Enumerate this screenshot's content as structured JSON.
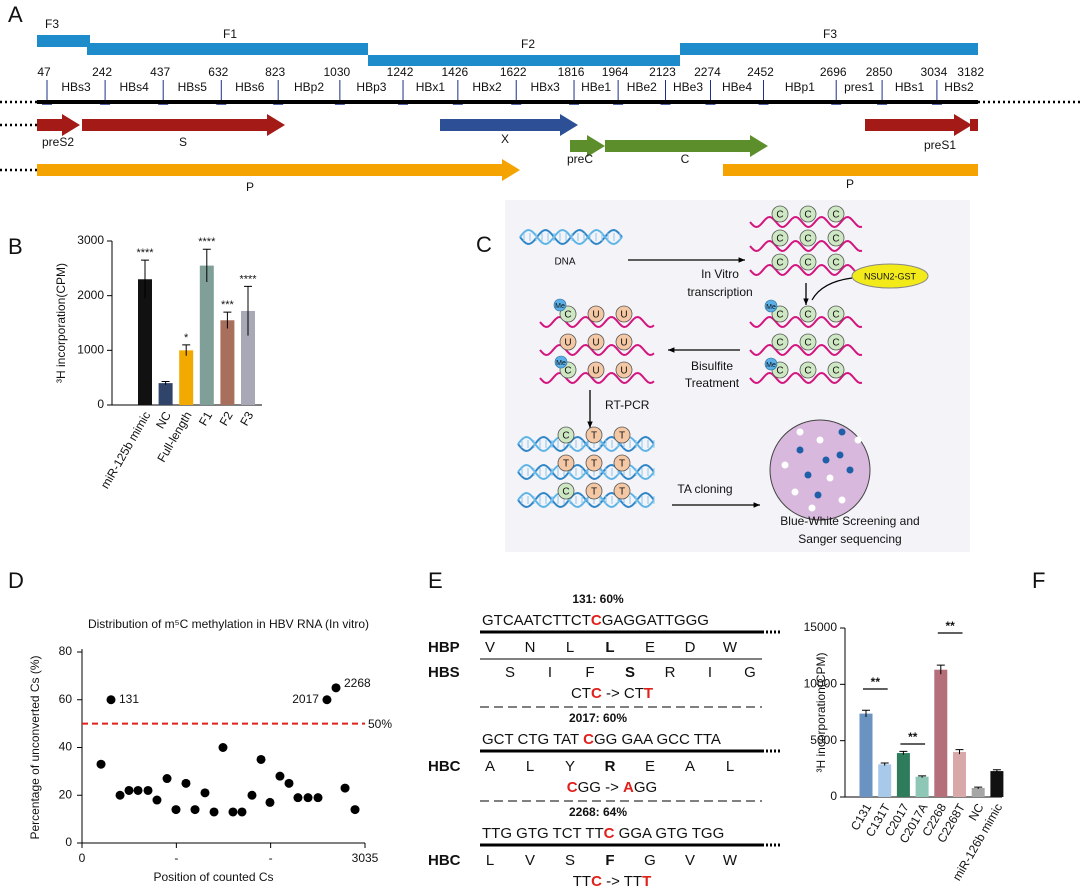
{
  "panel_a": {
    "label": "A",
    "fragments": [
      "F3",
      "F1",
      "F2",
      "F3"
    ],
    "positions": [
      47,
      242,
      437,
      632,
      823,
      1030,
      1242,
      1426,
      1622,
      1816,
      1964,
      2123,
      2274,
      2452,
      2696,
      2850,
      3034,
      3182
    ],
    "primers": [
      "HBs3",
      "HBs4",
      "HBs5",
      "HBs6",
      "HBp2",
      "HBp3",
      "HBx1",
      "HBx2",
      "HBx3",
      "HBe1",
      "HBe2",
      "HBe3",
      "HBe4",
      "HBp1",
      "pres1",
      "HBs1",
      "HBs2"
    ],
    "orfs": [
      "preS2",
      "S",
      "X",
      "preS1",
      "preC",
      "C",
      "P",
      "P"
    ]
  },
  "panel_c": {
    "label": "C",
    "dna": "DNA",
    "step1": [
      "In Vitro",
      "transcription"
    ],
    "enzyme": "NSUN2-GST",
    "step2": [
      "Bisulfite",
      "Treatment"
    ],
    "step3": "RT-PCR",
    "step4": "TA cloning",
    "result": [
      "Blue-White Screening and",
      "Sanger sequencing"
    ],
    "methyl": "Me",
    "base_c": "C",
    "base_u": "U",
    "base_t": "T"
  },
  "panel_e": {
    "label": "E",
    "sites": [
      {
        "title": "131: 60%",
        "seq": [
          {
            "text": "GTCAATCTTCT"
          },
          {
            "text": "C",
            "highlight": true
          },
          {
            "text": "GAGGATTGGG"
          }
        ],
        "proteins": [
          {
            "name": "HBP",
            "aa": [
              "V",
              "N",
              "L",
              "L",
              "E",
              "D",
              "W"
            ]
          },
          {
            "name": "HBS",
            "aa": [
              "S",
              "I",
              "F",
              "S",
              "R",
              "I",
              "G"
            ]
          }
        ],
        "mutation": [
          {
            "text": "CT"
          },
          {
            "text": "C",
            "highlight": true
          },
          {
            "text": " -> CT"
          },
          {
            "text": "T",
            "highlight": true
          }
        ]
      },
      {
        "title": "2017: 60%",
        "seq": [
          {
            "text": "GCT CTG TAT "
          },
          {
            "text": "C",
            "highlight": true
          },
          {
            "text": "GG GAA GCC TTA"
          }
        ],
        "proteins": [
          {
            "name": "HBC",
            "aa": [
              "A",
              "L",
              "Y",
              "R",
              "E",
              "A",
              "L"
            ]
          }
        ],
        "mutation": [
          {
            "text": "C",
            "highlight": true
          },
          {
            "text": "GG -> "
          },
          {
            "text": "A",
            "highlight": true
          },
          {
            "text": "GG"
          }
        ]
      },
      {
        "title": "2268: 64%",
        "seq": [
          {
            "text": "TTG GTG TCT TT"
          },
          {
            "text": "C",
            "highlight": true
          },
          {
            "text": " GGA GTG TGG"
          }
        ],
        "proteins": [
          {
            "name": "HBC",
            "aa": [
              "L",
              "V",
              "S",
              "F",
              "G",
              "V",
              "W"
            ]
          }
        ],
        "mutation": [
          {
            "text": "TT"
          },
          {
            "text": "C",
            "highlight": true
          },
          {
            "text": " -> TT"
          },
          {
            "text": "T",
            "highlight": true
          }
        ]
      }
    ]
  },
  "chart_data": [
    {
      "type": "bar",
      "panel_label": "B",
      "y_label": "³H incorporation(CPM)",
      "categories": [
        "miR-125b mimic",
        "NC",
        "Full-length",
        "F1",
        "F2",
        "F3"
      ],
      "values": [
        2300,
        400,
        1000,
        2550,
        1550,
        1720
      ],
      "errors": [
        350,
        30,
        100,
        300,
        150,
        450
      ],
      "colors": [
        "#111111",
        "#2f4468",
        "#f2a900",
        "#7f9f98",
        "#a8705c",
        "#a9a8b6"
      ],
      "significance": [
        "****",
        null,
        "*",
        "****",
        "***",
        "****"
      ],
      "ylim": [
        0,
        3000
      ],
      "yticks": [
        0,
        1000,
        2000,
        3000
      ]
    },
    {
      "type": "scatter",
      "panel_label": "D",
      "title": "Distribution of m⁵C methylation in HBV RNA (In vitro)",
      "x_label": "Position of counted Cs",
      "y_label": "Percentage of unconverted Cs (%)",
      "x": [
        204,
        311,
        408,
        504,
        601,
        708,
        804,
        912,
        1008,
        1115,
        1212,
        1319,
        1416,
        1512,
        1619,
        1716,
        1823,
        1920,
        2016,
        2123,
        2220,
        2316,
        2424,
        2531,
        2627,
        2724,
        2821,
        2928
      ],
      "values": [
        33,
        60,
        20,
        22,
        22,
        22,
        18,
        27,
        14,
        25,
        14,
        21,
        13,
        40,
        13,
        13,
        20,
        35,
        17,
        28,
        25,
        19,
        19,
        19,
        60,
        65,
        23,
        14
      ],
      "color": "#000000",
      "annotations": [
        "131",
        "2017",
        "2268"
      ],
      "threshold": {
        "value": 50,
        "label": "50%",
        "color": "#e0201b"
      },
      "xlim": [
        0,
        3035
      ],
      "xticks": [
        0,
        {
          "value": 1012,
          "label": "-"
        },
        {
          "value": 2023,
          "label": "-"
        },
        3035
      ],
      "ylim": [
        0,
        80
      ],
      "yticks": [
        0,
        20,
        40,
        60,
        80
      ]
    },
    {
      "type": "bar",
      "panel_label": "F",
      "y_label": "³H incorporation(CPM)",
      "categories": [
        "C131",
        "C131T",
        "C2017",
        "C2017A",
        "C2268",
        "C2268T",
        "NC",
        "miR-126b mimic"
      ],
      "values": [
        7400,
        2900,
        3900,
        1800,
        11300,
        4000,
        800,
        2300
      ],
      "errors": [
        300,
        120,
        150,
        80,
        400,
        200,
        80,
        120
      ],
      "colors": [
        "#6a93c1",
        "#a9c9ea",
        "#2f7c5c",
        "#8ec7b5",
        "#b46f7a",
        "#d9a8a9",
        "#a6a6a6",
        "#111111"
      ],
      "brackets": [
        "**",
        "**",
        "**"
      ],
      "ylim": [
        0,
        15000
      ],
      "yticks": [
        0,
        5000,
        10000,
        15000
      ]
    }
  ]
}
